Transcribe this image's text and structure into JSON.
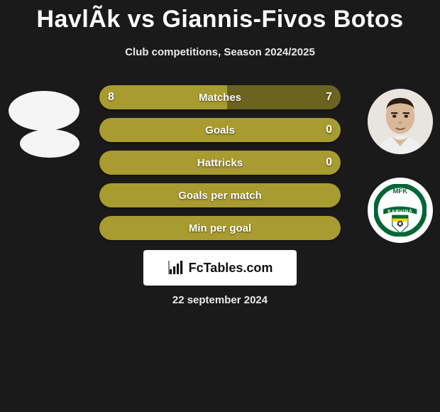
{
  "title": "HavlÃ­k vs Giannis-Fivos Botos",
  "subtitle": "Club competitions, Season 2024/2025",
  "date_line": "22 september 2024",
  "brand": "FcTables.com",
  "colors": {
    "background": "#1a1a1a",
    "bar_primary": "#a89b2f",
    "bar_secondary": "#6b631e",
    "text": "#ffffff"
  },
  "rows": [
    {
      "label": "Matches",
      "left": "8",
      "right": "7",
      "left_pct": 53,
      "right_pct": 47,
      "show_vals": true
    },
    {
      "label": "Goals",
      "left": "",
      "right": "0",
      "left_pct": 100,
      "right_pct": 0,
      "show_vals": true
    },
    {
      "label": "Hattricks",
      "left": "",
      "right": "0",
      "left_pct": 100,
      "right_pct": 0,
      "show_vals": true
    },
    {
      "label": "Goals per match",
      "left": "",
      "right": "",
      "left_pct": 100,
      "right_pct": 0,
      "show_vals": false
    },
    {
      "label": "Min per goal",
      "left": "",
      "right": "",
      "left_pct": 100,
      "right_pct": 0,
      "show_vals": false
    }
  ],
  "club_right": {
    "name": "MFK Karviná",
    "ring_color": "#006633",
    "banner_color": "#006633",
    "shield_top": "#ffffff",
    "shield_stripes": [
      "#006633",
      "#f4d900"
    ]
  }
}
